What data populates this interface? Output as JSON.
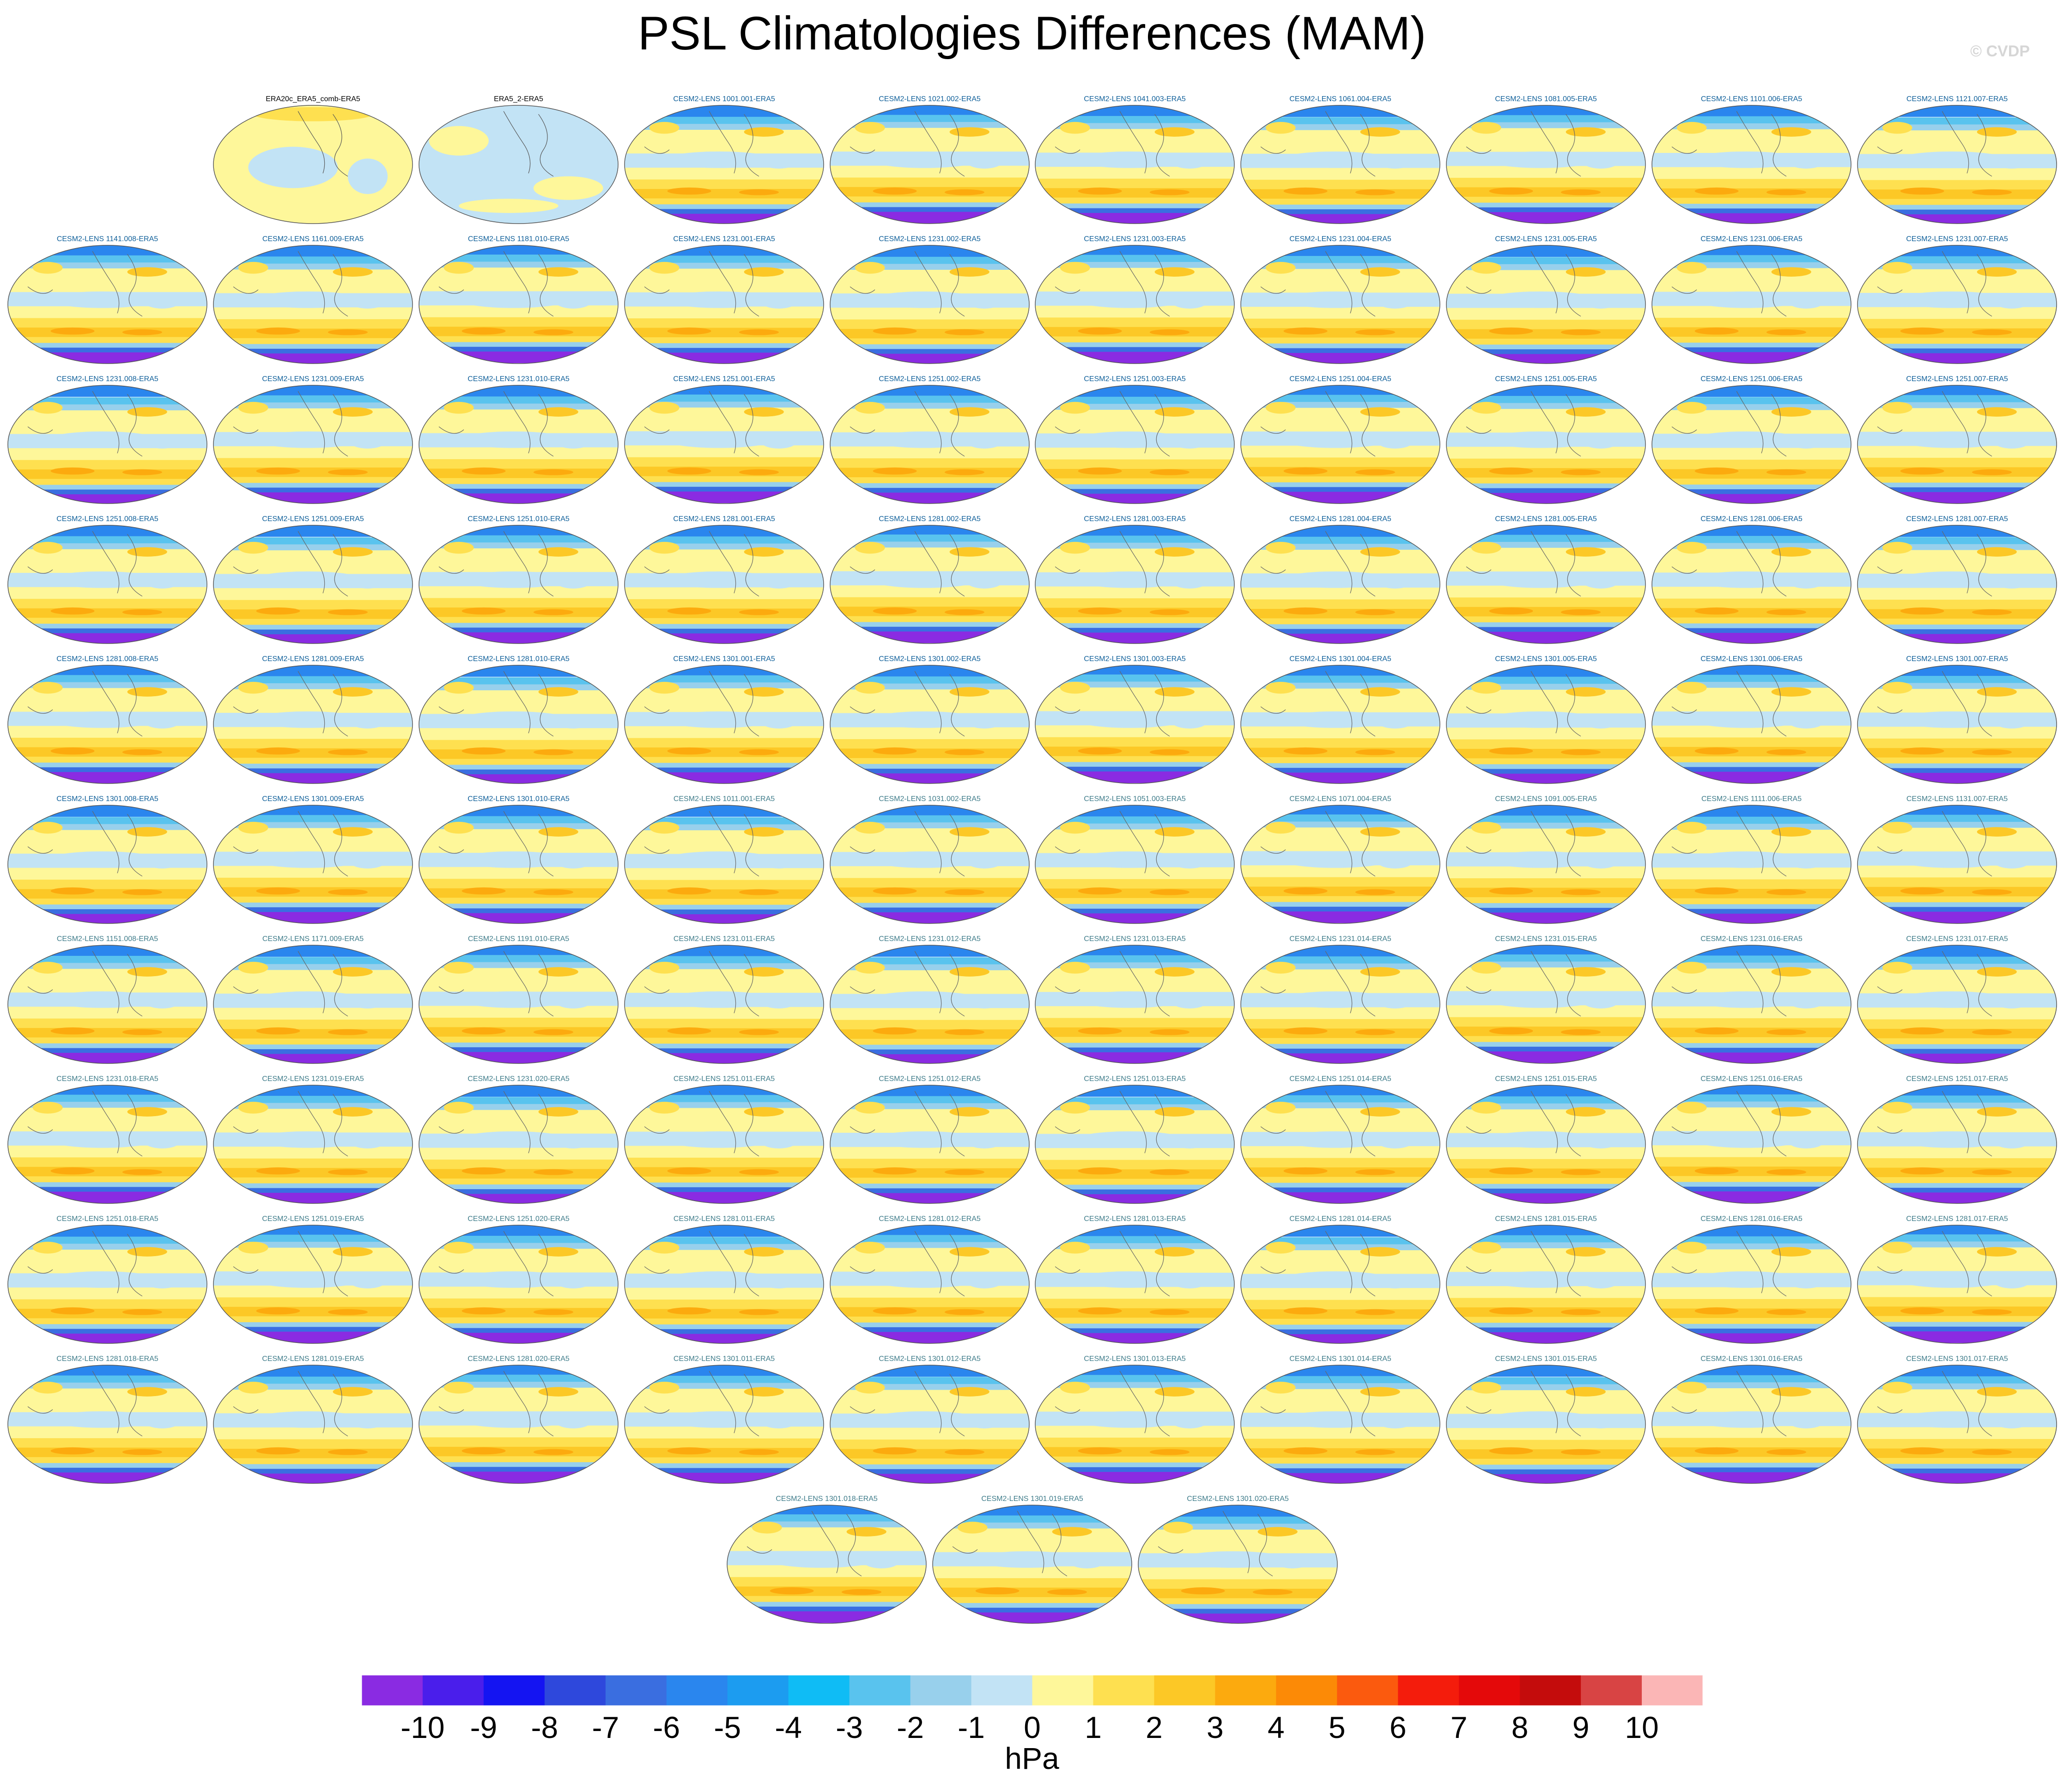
{
  "title": "PSL Climatologies Differences (MAM)",
  "credit": "© CVDP",
  "colorbar": {
    "units": "hPa",
    "tick_labels": [
      "-10",
      "-9",
      "-8",
      "-7",
      "-6",
      "-5",
      "-4",
      "-3",
      "-2",
      "-1",
      "0",
      "1",
      "2",
      "3",
      "4",
      "5",
      "6",
      "7",
      "8",
      "9",
      "10"
    ],
    "colors": [
      "#8a2be2",
      "#4a1eeb",
      "#1414f2",
      "#2e48dc",
      "#3a6ee0",
      "#2a86ee",
      "#1c9cf0",
      "#0fbcf5",
      "#59c3ee",
      "#98d0ec",
      "#c2e3f5",
      "#fef79a",
      "#fee050",
      "#fcc826",
      "#fcaa0e",
      "#fc8a06",
      "#fb5a0e",
      "#f41c0c",
      "#e4090a",
      "#c40c0c",
      "#d84444",
      "#fbb6b6"
    ]
  },
  "panels": [
    {
      "label": "ERA20c_ERA5_comb-ERA5",
      "kind": "obs"
    },
    {
      "label": "ERA5_2-ERA5",
      "kind": "obs"
    },
    {
      "label": "CESM2-LENS 1001.001-ERA5",
      "kind": "model"
    },
    {
      "label": "CESM2-LENS 1021.002-ERA5",
      "kind": "model"
    },
    {
      "label": "CESM2-LENS 1041.003-ERA5",
      "kind": "model"
    },
    {
      "label": "CESM2-LENS 1061.004-ERA5",
      "kind": "model"
    },
    {
      "label": "CESM2-LENS 1081.005-ERA5",
      "kind": "model"
    },
    {
      "label": "CESM2-LENS 1101.006-ERA5",
      "kind": "model"
    },
    {
      "label": "CESM2-LENS 1121.007-ERA5",
      "kind": "model"
    },
    {
      "label": "CESM2-LENS 1141.008-ERA5",
      "kind": "model"
    },
    {
      "label": "CESM2-LENS 1161.009-ERA5",
      "kind": "model"
    },
    {
      "label": "CESM2-LENS 1181.010-ERA5",
      "kind": "model"
    },
    {
      "label": "CESM2-LENS 1231.001-ERA5",
      "kind": "model"
    },
    {
      "label": "CESM2-LENS 1231.002-ERA5",
      "kind": "model"
    },
    {
      "label": "CESM2-LENS 1231.003-ERA5",
      "kind": "model"
    },
    {
      "label": "CESM2-LENS 1231.004-ERA5",
      "kind": "model"
    },
    {
      "label": "CESM2-LENS 1231.005-ERA5",
      "kind": "model"
    },
    {
      "label": "CESM2-LENS 1231.006-ERA5",
      "kind": "model"
    },
    {
      "label": "CESM2-LENS 1231.007-ERA5",
      "kind": "model"
    },
    {
      "label": "CESM2-LENS 1231.008-ERA5",
      "kind": "model"
    },
    {
      "label": "CESM2-LENS 1231.009-ERA5",
      "kind": "model"
    },
    {
      "label": "CESM2-LENS 1231.010-ERA5",
      "kind": "model"
    },
    {
      "label": "CESM2-LENS 1251.001-ERA5",
      "kind": "model"
    },
    {
      "label": "CESM2-LENS 1251.002-ERA5",
      "kind": "model"
    },
    {
      "label": "CESM2-LENS 1251.003-ERA5",
      "kind": "model"
    },
    {
      "label": "CESM2-LENS 1251.004-ERA5",
      "kind": "model"
    },
    {
      "label": "CESM2-LENS 1251.005-ERA5",
      "kind": "model"
    },
    {
      "label": "CESM2-LENS 1251.006-ERA5",
      "kind": "model"
    },
    {
      "label": "CESM2-LENS 1251.007-ERA5",
      "kind": "model"
    },
    {
      "label": "CESM2-LENS 1251.008-ERA5",
      "kind": "model"
    },
    {
      "label": "CESM2-LENS 1251.009-ERA5",
      "kind": "model"
    },
    {
      "label": "CESM2-LENS 1251.010-ERA5",
      "kind": "model"
    },
    {
      "label": "CESM2-LENS 1281.001-ERA5",
      "kind": "model"
    },
    {
      "label": "CESM2-LENS 1281.002-ERA5",
      "kind": "model"
    },
    {
      "label": "CESM2-LENS 1281.003-ERA5",
      "kind": "model"
    },
    {
      "label": "CESM2-LENS 1281.004-ERA5",
      "kind": "model"
    },
    {
      "label": "CESM2-LENS 1281.005-ERA5",
      "kind": "model"
    },
    {
      "label": "CESM2-LENS 1281.006-ERA5",
      "kind": "model"
    },
    {
      "label": "CESM2-LENS 1281.007-ERA5",
      "kind": "model"
    },
    {
      "label": "CESM2-LENS 1281.008-ERA5",
      "kind": "model"
    },
    {
      "label": "CESM2-LENS 1281.009-ERA5",
      "kind": "model"
    },
    {
      "label": "CESM2-LENS 1281.010-ERA5",
      "kind": "model"
    },
    {
      "label": "CESM2-LENS 1301.001-ERA5",
      "kind": "model"
    },
    {
      "label": "CESM2-LENS 1301.002-ERA5",
      "kind": "model"
    },
    {
      "label": "CESM2-LENS 1301.003-ERA5",
      "kind": "model"
    },
    {
      "label": "CESM2-LENS 1301.004-ERA5",
      "kind": "model"
    },
    {
      "label": "CESM2-LENS 1301.005-ERA5",
      "kind": "model"
    },
    {
      "label": "CESM2-LENS 1301.006-ERA5",
      "kind": "model"
    },
    {
      "label": "CESM2-LENS 1301.007-ERA5",
      "kind": "model"
    },
    {
      "label": "CESM2-LENS 1301.008-ERA5",
      "kind": "model"
    },
    {
      "label": "CESM2-LENS 1301.009-ERA5",
      "kind": "model"
    },
    {
      "label": "CESM2-LENS 1301.010-ERA5",
      "kind": "model"
    },
    {
      "label": "CESM2-LENS 1011.001-ERA5",
      "kind": "smbb"
    },
    {
      "label": "CESM2-LENS 1031.002-ERA5",
      "kind": "smbb"
    },
    {
      "label": "CESM2-LENS 1051.003-ERA5",
      "kind": "smbb"
    },
    {
      "label": "CESM2-LENS 1071.004-ERA5",
      "kind": "smbb"
    },
    {
      "label": "CESM2-LENS 1091.005-ERA5",
      "kind": "smbb"
    },
    {
      "label": "CESM2-LENS 1111.006-ERA5",
      "kind": "smbb"
    },
    {
      "label": "CESM2-LENS 1131.007-ERA5",
      "kind": "smbb"
    },
    {
      "label": "CESM2-LENS 1151.008-ERA5",
      "kind": "smbb"
    },
    {
      "label": "CESM2-LENS 1171.009-ERA5",
      "kind": "smbb"
    },
    {
      "label": "CESM2-LENS 1191.010-ERA5",
      "kind": "smbb"
    },
    {
      "label": "CESM2-LENS 1231.011-ERA5",
      "kind": "smbb"
    },
    {
      "label": "CESM2-LENS 1231.012-ERA5",
      "kind": "smbb"
    },
    {
      "label": "CESM2-LENS 1231.013-ERA5",
      "kind": "smbb"
    },
    {
      "label": "CESM2-LENS 1231.014-ERA5",
      "kind": "smbb"
    },
    {
      "label": "CESM2-LENS 1231.015-ERA5",
      "kind": "smbb"
    },
    {
      "label": "CESM2-LENS 1231.016-ERA5",
      "kind": "smbb"
    },
    {
      "label": "CESM2-LENS 1231.017-ERA5",
      "kind": "smbb"
    },
    {
      "label": "CESM2-LENS 1231.018-ERA5",
      "kind": "smbb"
    },
    {
      "label": "CESM2-LENS 1231.019-ERA5",
      "kind": "smbb"
    },
    {
      "label": "CESM2-LENS 1231.020-ERA5",
      "kind": "smbb"
    },
    {
      "label": "CESM2-LENS 1251.011-ERA5",
      "kind": "smbb"
    },
    {
      "label": "CESM2-LENS 1251.012-ERA5",
      "kind": "smbb"
    },
    {
      "label": "CESM2-LENS 1251.013-ERA5",
      "kind": "smbb"
    },
    {
      "label": "CESM2-LENS 1251.014-ERA5",
      "kind": "smbb"
    },
    {
      "label": "CESM2-LENS 1251.015-ERA5",
      "kind": "smbb"
    },
    {
      "label": "CESM2-LENS 1251.016-ERA5",
      "kind": "smbb"
    },
    {
      "label": "CESM2-LENS 1251.017-ERA5",
      "kind": "smbb"
    },
    {
      "label": "CESM2-LENS 1251.018-ERA5",
      "kind": "smbb"
    },
    {
      "label": "CESM2-LENS 1251.019-ERA5",
      "kind": "smbb"
    },
    {
      "label": "CESM2-LENS 1251.020-ERA5",
      "kind": "smbb"
    },
    {
      "label": "CESM2-LENS 1281.011-ERA5",
      "kind": "smbb"
    },
    {
      "label": "CESM2-LENS 1281.012-ERA5",
      "kind": "smbb"
    },
    {
      "label": "CESM2-LENS 1281.013-ERA5",
      "kind": "smbb"
    },
    {
      "label": "CESM2-LENS 1281.014-ERA5",
      "kind": "smbb"
    },
    {
      "label": "CESM2-LENS 1281.015-ERA5",
      "kind": "smbb"
    },
    {
      "label": "CESM2-LENS 1281.016-ERA5",
      "kind": "smbb"
    },
    {
      "label": "CESM2-LENS 1281.017-ERA5",
      "kind": "smbb"
    },
    {
      "label": "CESM2-LENS 1281.018-ERA5",
      "kind": "smbb"
    },
    {
      "label": "CESM2-LENS 1281.019-ERA5",
      "kind": "smbb"
    },
    {
      "label": "CESM2-LENS 1281.020-ERA5",
      "kind": "smbb"
    },
    {
      "label": "CESM2-LENS 1301.011-ERA5",
      "kind": "smbb"
    },
    {
      "label": "CESM2-LENS 1301.012-ERA5",
      "kind": "smbb"
    },
    {
      "label": "CESM2-LENS 1301.013-ERA5",
      "kind": "smbb"
    },
    {
      "label": "CESM2-LENS 1301.014-ERA5",
      "kind": "smbb"
    },
    {
      "label": "CESM2-LENS 1301.015-ERA5",
      "kind": "smbb"
    },
    {
      "label": "CESM2-LENS 1301.016-ERA5",
      "kind": "smbb"
    },
    {
      "label": "CESM2-LENS 1301.017-ERA5",
      "kind": "smbb"
    },
    {
      "label": "CESM2-LENS 1301.018-ERA5",
      "kind": "smbb"
    },
    {
      "label": "CESM2-LENS 1301.019-ERA5",
      "kind": "smbb"
    },
    {
      "label": "CESM2-LENS 1301.020-ERA5",
      "kind": "smbb"
    }
  ]
}
